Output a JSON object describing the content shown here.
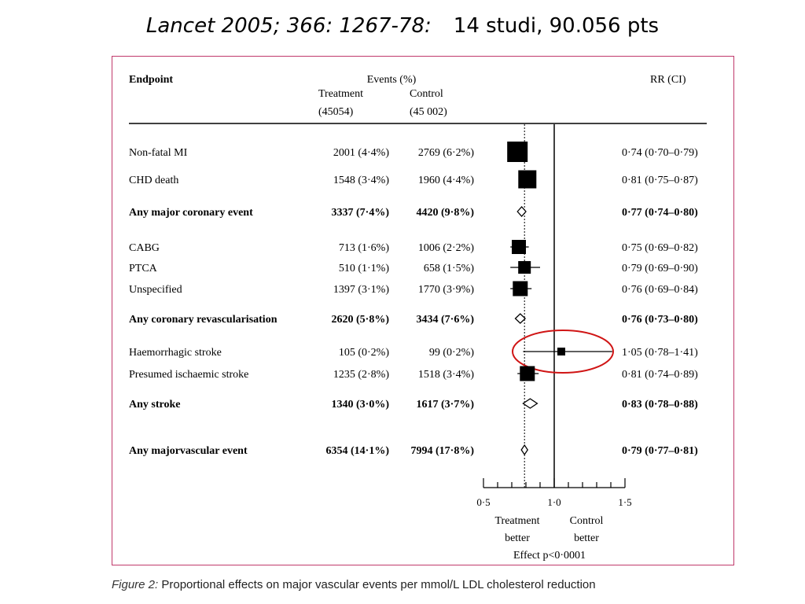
{
  "slide": {
    "title_ref": "Lancet 2005; 366: 1267-78:",
    "title_info": "14 studi, 90.056 pts"
  },
  "caption": {
    "figure_label": "Figure 2:",
    "text": "Proportional effects on major vascular events per mmol/L LDL cholesterol reduction"
  },
  "colors": {
    "frame": "#c0396b",
    "highlight": "#d01515",
    "ink": "#000000"
  },
  "chart_data": {
    "type": "forest",
    "headers": {
      "endpoint": "Endpoint",
      "events": "Events (%)",
      "treatment": "Treatment",
      "treatment_n": "(45054)",
      "control": "Control",
      "control_n": "(45 002)",
      "rr": "RR (CI)"
    },
    "rows": [
      {
        "endpoint": "Non-fatal MI",
        "treatment": "2001 (4·4%)",
        "control": "2769 (6·2%)",
        "rr": 0.74,
        "lo": 0.7,
        "hi": 0.79,
        "rr_text": "0·74 (0·70–0·79)",
        "summary": false,
        "weight": 1.0
      },
      {
        "endpoint": "CHD death",
        "treatment": "1548 (3·4%)",
        "control": "1960 (4·4%)",
        "rr": 0.81,
        "lo": 0.75,
        "hi": 0.87,
        "rr_text": "0·81 (0·75–0·87)",
        "summary": false,
        "weight": 0.85
      },
      {
        "endpoint": "Any major coronary event",
        "treatment": "3337 (7·4%)",
        "control": "4420 (9·8%)",
        "rr": 0.77,
        "lo": 0.74,
        "hi": 0.8,
        "rr_text": "0·77 (0·74–0·80)",
        "summary": true
      },
      {
        "endpoint": "CABG",
        "treatment": "713 (1·6%)",
        "control": "1006 (2·2%)",
        "rr": 0.75,
        "lo": 0.69,
        "hi": 0.82,
        "rr_text": "0·75 (0·69–0·82)",
        "summary": false,
        "weight": 0.6
      },
      {
        "endpoint": "PTCA",
        "treatment": "510 (1·1%)",
        "control": "658 (1·5%)",
        "rr": 0.79,
        "lo": 0.69,
        "hi": 0.9,
        "rr_text": "0·79 (0·69–0·90)",
        "summary": false,
        "weight": 0.5
      },
      {
        "endpoint": "Unspecified",
        "treatment": "1397 (3·1%)",
        "control": "1770 (3·9%)",
        "rr": 0.76,
        "lo": 0.69,
        "hi": 0.84,
        "rr_text": "0·76 (0·69–0·84)",
        "summary": false,
        "weight": 0.65
      },
      {
        "endpoint": "Any coronary revascularisation",
        "treatment": "2620 (5·8%)",
        "control": "3434 (7·6%)",
        "rr": 0.76,
        "lo": 0.73,
        "hi": 0.8,
        "rr_text": "0·76 (0·73–0·80)",
        "summary": true
      },
      {
        "endpoint": "Haemorrhagic stroke",
        "treatment": "105 (0·2%)",
        "control": "99 (0·2%)",
        "rr": 1.05,
        "lo": 0.78,
        "hi": 1.41,
        "rr_text": "1·05 (0·78–1·41)",
        "summary": false,
        "weight": 0.2,
        "highlighted": true
      },
      {
        "endpoint": "Presumed ischaemic stroke",
        "treatment": "1235 (2·8%)",
        "control": "1518 (3·4%)",
        "rr": 0.81,
        "lo": 0.74,
        "hi": 0.89,
        "rr_text": "0·81 (0·74–0·89)",
        "summary": false,
        "weight": 0.65
      },
      {
        "endpoint": "Any stroke",
        "treatment": "1340 (3·0%)",
        "control": "1617 (3·7%)",
        "rr": 0.83,
        "lo": 0.78,
        "hi": 0.88,
        "rr_text": "0·83 (0·78–0·88)",
        "summary": true
      },
      {
        "endpoint": "Any majorvascular event",
        "treatment": "6354 (14·1%)",
        "control": "7994 (17·8%)",
        "rr": 0.79,
        "lo": 0.77,
        "hi": 0.81,
        "rr_text": "0·79 (0·77–0·81)",
        "summary": true
      }
    ],
    "overall_rr": 0.79,
    "null_value": 1.0,
    "x_range": [
      0.5,
      1.5
    ],
    "x_ticks": [
      0.5,
      0.6,
      0.7,
      0.8,
      0.9,
      1.0,
      1.1,
      1.2,
      1.3,
      1.4,
      1.5
    ],
    "x_tick_labels": [
      {
        "value": 0.5,
        "label": "0·5"
      },
      {
        "value": 1.0,
        "label": "1·0"
      },
      {
        "value": 1.5,
        "label": "1·5"
      }
    ],
    "x_caption_left": [
      "Treatment",
      "better"
    ],
    "x_caption_right": [
      "Control",
      "better"
    ],
    "effect_text": "Effect p<0·0001"
  }
}
